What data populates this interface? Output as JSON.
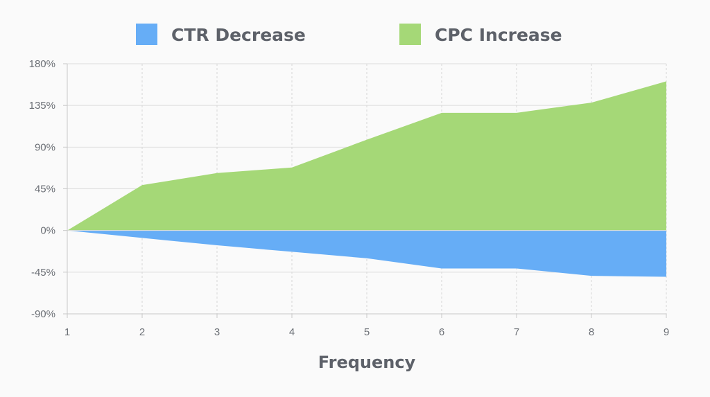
{
  "chart_data": {
    "type": "area",
    "x": [
      1,
      2,
      3,
      4,
      5,
      6,
      7,
      8,
      9
    ],
    "series": [
      {
        "name": "CTR Decrease",
        "values": [
          0,
          -8,
          -16,
          -23,
          -30,
          -41,
          -41,
          -49,
          -50
        ],
        "color": "#66adf6"
      },
      {
        "name": "CPC Increase",
        "values": [
          0,
          49,
          62,
          68,
          98,
          127,
          127,
          138,
          161
        ],
        "color": "#a5d877"
      }
    ],
    "xlabel": "Frequency",
    "ylabel": "",
    "ylim": [
      -90,
      180
    ],
    "yticks": [
      -90,
      -45,
      0,
      45,
      90,
      135,
      180
    ],
    "ytick_labels": [
      "-90%",
      "-45%",
      "0%",
      "45%",
      "90%",
      "135%",
      "180%"
    ],
    "xtick_labels": [
      "1",
      "2",
      "3",
      "4",
      "5",
      "6",
      "7",
      "8",
      "9"
    ],
    "grid": true,
    "legend": "top-center"
  }
}
